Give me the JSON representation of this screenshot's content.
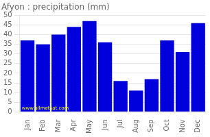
{
  "chart_data": {
    "type": "bar",
    "title": "Afyon : precipitation (mm)",
    "categories": [
      "Jan",
      "Feb",
      "Mar",
      "Apr",
      "May",
      "Jun",
      "Jul",
      "Aug",
      "Sep",
      "Oct",
      "Nov",
      "Dec"
    ],
    "values": [
      37,
      35,
      40,
      44,
      47,
      36,
      16,
      11,
      17,
      37,
      31,
      46
    ],
    "color": "#0000DD",
    "ylim": [
      0,
      50
    ],
    "yticks": [
      0,
      5,
      10,
      15,
      20,
      25,
      30,
      35,
      40,
      45,
      50
    ],
    "grid": true,
    "annotation": "www.allmetsat.com"
  }
}
